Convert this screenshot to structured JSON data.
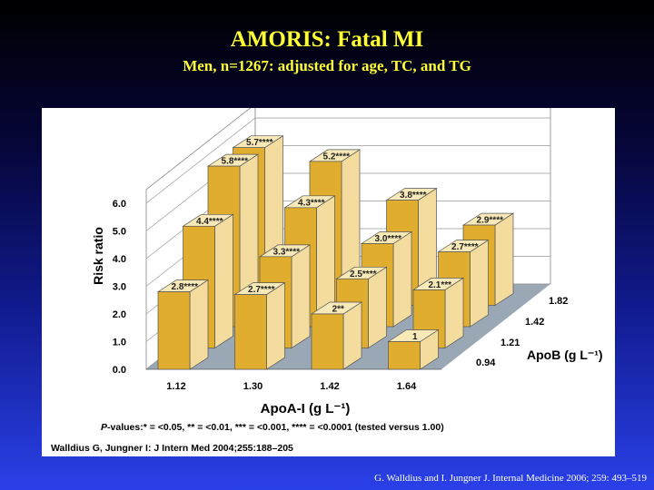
{
  "slide": {
    "title": "AMORIS: Fatal MI",
    "subtitle": "Men, n=1267: adjusted for age, TC, and TG",
    "citation": "G. Walldius and I. Jungner J. Internal Medicine 2006; 259: 493–519"
  },
  "figure": {
    "pvalue_prefix": "P",
    "pvalue_text": "-values:* = <0.05, ** = <0.01, *** = <0.001, **** = <0.0001 (tested versus 1.00)",
    "source": "Walldius G, Jungner I: J Intern Med 2004;255:188–205"
  },
  "colors": {
    "bar_front": "#e0ad2e",
    "bar_side": "#f3dc9d",
    "bar_top": "#f8eab8",
    "floor": "#9aa8b5"
  },
  "chart_data": {
    "type": "bar",
    "subtype": "3d-grouped",
    "xlabel": "ApoA-I (g L⁻¹)",
    "ylabel": "Risk ratio",
    "zlabel": "ApoB (g L⁻¹)",
    "categories": [
      "1.12",
      "1.30",
      "1.42",
      "1.64"
    ],
    "depth_categories": [
      "0.94",
      "1.21",
      "1.42",
      "1.82"
    ],
    "y_ticks": [
      "0.0",
      "1.0",
      "2.0",
      "3.0",
      "4.0",
      "5.0",
      "6.0"
    ],
    "ylim": [
      0,
      6.5
    ],
    "series": [
      {
        "name": "0.94",
        "values": [
          2.8,
          2.7,
          2.0,
          1.0
        ],
        "labels": [
          "2.8****",
          "2.7****",
          "2**",
          "1"
        ]
      },
      {
        "name": "1.21",
        "values": [
          4.4,
          3.3,
          2.5,
          2.1
        ],
        "labels": [
          "4.4****",
          "3.3****",
          "2.5****",
          "2.1***"
        ]
      },
      {
        "name": "1.42",
        "values": [
          5.8,
          4.3,
          3.0,
          2.7
        ],
        "labels": [
          "5.8****",
          "4.3****",
          "3.0****",
          "2.7****"
        ]
      },
      {
        "name": "1.82",
        "values": [
          5.7,
          5.2,
          3.8,
          2.9
        ],
        "labels": [
          "5.7****",
          "5.2****",
          "3.8****",
          "2.9****"
        ]
      }
    ]
  }
}
